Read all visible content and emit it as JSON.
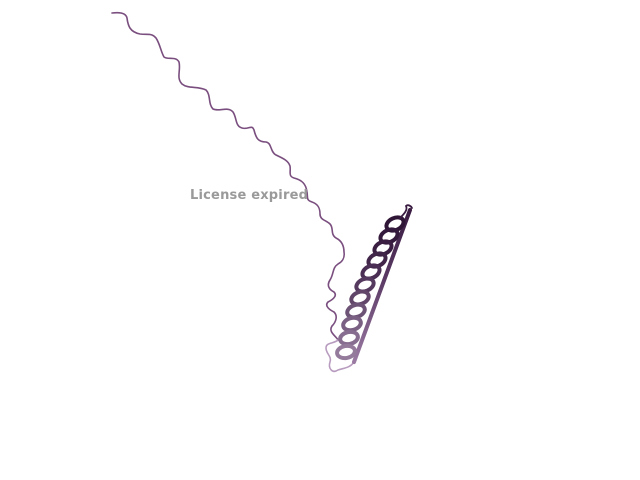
{
  "viewer": {
    "watermark": "License expired",
    "colors": {
      "background": "#ffffff",
      "coil": "#7a4f7f",
      "helix_dark": "#3d1f45",
      "helix_mid": "#5a3a64",
      "helix_light": "#9a7aa3",
      "tail_light": "#b89cbf",
      "watermark": "#9a9a9a"
    }
  }
}
